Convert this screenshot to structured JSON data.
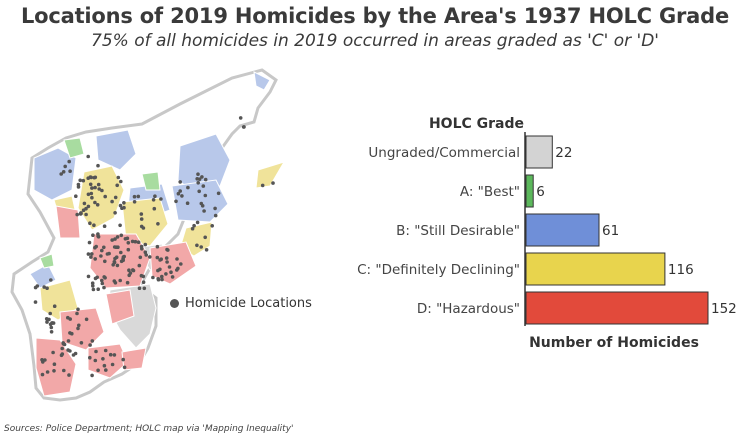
{
  "title": "Locations of 2019 Homicides by the Area's 1937 HOLC Grade",
  "subtitle": "75% of all homicides in 2019 occurred in areas graded as 'C' or 'D'",
  "source": "Sources: Police Department; HOLC map via 'Mapping Inequality'",
  "map": {
    "legend_label": "Homicide Locations",
    "dot_color": "#555555",
    "grade_colors": {
      "ungraded": "#d9d9d9",
      "A": "#a8dca0",
      "B": "#b8c8ea",
      "C": "#f0e39a",
      "D": "#f2a8a8"
    }
  },
  "chart_data": {
    "type": "bar",
    "orientation": "horizontal",
    "legend_title": "HOLC Grade",
    "xlabel": "Number of Homicides",
    "categories": [
      "Ungraded/Commercial",
      "A: \"Best\"",
      "B: \"Still Desirable\"",
      "C: \"Definitely Declining\"",
      "D: \"Hazardous\""
    ],
    "values": [
      22,
      6,
      61,
      116,
      152
    ],
    "colors": [
      "#d3d3d3",
      "#5cb85c",
      "#6f8fd8",
      "#e8d44d",
      "#e24a3b"
    ],
    "xlim": [
      0,
      152
    ]
  }
}
